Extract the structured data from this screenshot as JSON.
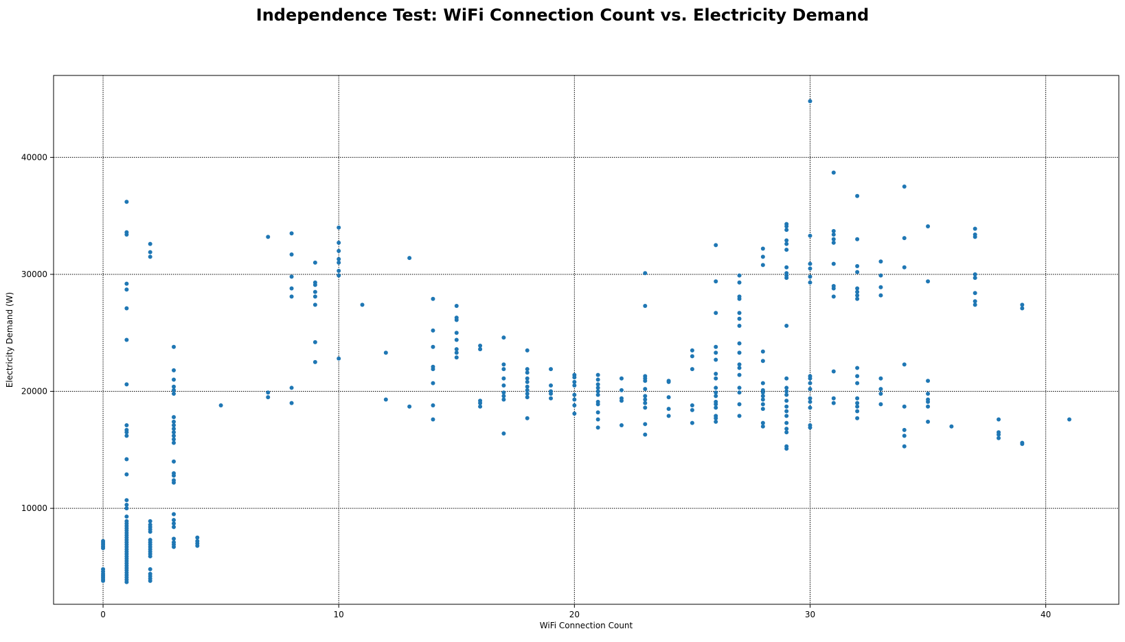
{
  "chart_data": {
    "type": "scatter",
    "title": "Independence Test: WiFi Connection Count vs. Electricity Demand",
    "xlabel": "WiFi Connection Count",
    "ylabel": "Electricity Demand (W)",
    "xlim": [
      -2.1,
      43.1
    ],
    "ylim": [
      1800,
      47000
    ],
    "xticks": [
      0,
      10,
      20,
      30,
      40
    ],
    "yticks": [
      10000,
      20000,
      30000,
      40000
    ],
    "grid": true,
    "grid_style": "dotted",
    "marker_color": "#1f77b4",
    "points": [
      [
        0,
        3800
      ],
      [
        0,
        3950
      ],
      [
        0,
        4100
      ],
      [
        0,
        4250
      ],
      [
        0,
        4400
      ],
      [
        0,
        4600
      ],
      [
        0,
        4800
      ],
      [
        0,
        6600
      ],
      [
        0,
        6750
      ],
      [
        0,
        6900
      ],
      [
        0,
        7050
      ],
      [
        0,
        7200
      ],
      [
        1,
        3700
      ],
      [
        1,
        3900
      ],
      [
        1,
        4100
      ],
      [
        1,
        4300
      ],
      [
        1,
        4500
      ],
      [
        1,
        4700
      ],
      [
        1,
        4900
      ],
      [
        1,
        5100
      ],
      [
        1,
        5300
      ],
      [
        1,
        5500
      ],
      [
        1,
        5700
      ],
      [
        1,
        5900
      ],
      [
        1,
        6100
      ],
      [
        1,
        6300
      ],
      [
        1,
        6500
      ],
      [
        1,
        6700
      ],
      [
        1,
        6900
      ],
      [
        1,
        7100
      ],
      [
        1,
        7300
      ],
      [
        1,
        7500
      ],
      [
        1,
        7700
      ],
      [
        1,
        7900
      ],
      [
        1,
        8100
      ],
      [
        1,
        8300
      ],
      [
        1,
        8500
      ],
      [
        1,
        8700
      ],
      [
        1,
        8900
      ],
      [
        1,
        9300
      ],
      [
        1,
        10000
      ],
      [
        1,
        10300
      ],
      [
        1,
        10700
      ],
      [
        1,
        12900
      ],
      [
        1,
        14200
      ],
      [
        1,
        16200
      ],
      [
        1,
        16500
      ],
      [
        1,
        16700
      ],
      [
        1,
        17100
      ],
      [
        1,
        20600
      ],
      [
        1,
        24400
      ],
      [
        1,
        27100
      ],
      [
        1,
        28700
      ],
      [
        1,
        29200
      ],
      [
        1,
        33400
      ],
      [
        1,
        33600
      ],
      [
        1,
        36200
      ],
      [
        2,
        3800
      ],
      [
        2,
        4000
      ],
      [
        2,
        4200
      ],
      [
        2,
        4400
      ],
      [
        2,
        4800
      ],
      [
        2,
        5900
      ],
      [
        2,
        6100
      ],
      [
        2,
        6300
      ],
      [
        2,
        6500
      ],
      [
        2,
        6700
      ],
      [
        2,
        6900
      ],
      [
        2,
        7100
      ],
      [
        2,
        7300
      ],
      [
        2,
        8000
      ],
      [
        2,
        8200
      ],
      [
        2,
        8400
      ],
      [
        2,
        8600
      ],
      [
        2,
        8900
      ],
      [
        2,
        31500
      ],
      [
        2,
        31900
      ],
      [
        2,
        32600
      ],
      [
        3,
        6700
      ],
      [
        3,
        6900
      ],
      [
        3,
        7100
      ],
      [
        3,
        7400
      ],
      [
        3,
        8400
      ],
      [
        3,
        8700
      ],
      [
        3,
        9000
      ],
      [
        3,
        9500
      ],
      [
        3,
        12200
      ],
      [
        3,
        12400
      ],
      [
        3,
        12800
      ],
      [
        3,
        13000
      ],
      [
        3,
        14000
      ],
      [
        3,
        15600
      ],
      [
        3,
        15900
      ],
      [
        3,
        16200
      ],
      [
        3,
        16500
      ],
      [
        3,
        16800
      ],
      [
        3,
        17100
      ],
      [
        3,
        17400
      ],
      [
        3,
        17800
      ],
      [
        3,
        19800
      ],
      [
        3,
        20100
      ],
      [
        3,
        20400
      ],
      [
        3,
        21000
      ],
      [
        3,
        21800
      ],
      [
        3,
        23800
      ],
      [
        4,
        6800
      ],
      [
        4,
        7000
      ],
      [
        4,
        7200
      ],
      [
        4,
        7500
      ],
      [
        5,
        18800
      ],
      [
        7,
        19500
      ],
      [
        7,
        19900
      ],
      [
        7,
        33200
      ],
      [
        8,
        19000
      ],
      [
        8,
        20300
      ],
      [
        8,
        28100
      ],
      [
        8,
        28800
      ],
      [
        8,
        29800
      ],
      [
        8,
        31700
      ],
      [
        8,
        33500
      ],
      [
        9,
        22500
      ],
      [
        9,
        24200
      ],
      [
        9,
        27400
      ],
      [
        9,
        28100
      ],
      [
        9,
        28500
      ],
      [
        9,
        29100
      ],
      [
        9,
        29300
      ],
      [
        9,
        31000
      ],
      [
        10,
        22800
      ],
      [
        10,
        29900
      ],
      [
        10,
        30300
      ],
      [
        10,
        31000
      ],
      [
        10,
        31300
      ],
      [
        10,
        32000
      ],
      [
        10,
        32700
      ],
      [
        10,
        34000
      ],
      [
        11,
        27400
      ],
      [
        12,
        19300
      ],
      [
        12,
        23300
      ],
      [
        13,
        18700
      ],
      [
        13,
        31400
      ],
      [
        14,
        17600
      ],
      [
        14,
        18800
      ],
      [
        14,
        20700
      ],
      [
        14,
        21900
      ],
      [
        14,
        22100
      ],
      [
        14,
        23800
      ],
      [
        14,
        25200
      ],
      [
        14,
        27900
      ],
      [
        15,
        22900
      ],
      [
        15,
        23300
      ],
      [
        15,
        23600
      ],
      [
        15,
        24400
      ],
      [
        15,
        25000
      ],
      [
        15,
        26100
      ],
      [
        15,
        26300
      ],
      [
        15,
        27300
      ],
      [
        16,
        18700
      ],
      [
        16,
        19000
      ],
      [
        16,
        19200
      ],
      [
        16,
        23600
      ],
      [
        16,
        23900
      ],
      [
        17,
        16400
      ],
      [
        17,
        19300
      ],
      [
        17,
        19600
      ],
      [
        17,
        19900
      ],
      [
        17,
        20500
      ],
      [
        17,
        21100
      ],
      [
        17,
        21900
      ],
      [
        17,
        22300
      ],
      [
        17,
        24600
      ],
      [
        18,
        17700
      ],
      [
        18,
        19500
      ],
      [
        18,
        19800
      ],
      [
        18,
        20100
      ],
      [
        18,
        20400
      ],
      [
        18,
        20800
      ],
      [
        18,
        21100
      ],
      [
        18,
        21600
      ],
      [
        18,
        21900
      ],
      [
        18,
        23500
      ],
      [
        19,
        19400
      ],
      [
        19,
        19800
      ],
      [
        19,
        20000
      ],
      [
        19,
        20500
      ],
      [
        19,
        21900
      ],
      [
        20,
        18100
      ],
      [
        20,
        18800
      ],
      [
        20,
        19300
      ],
      [
        20,
        19700
      ],
      [
        20,
        20500
      ],
      [
        20,
        20800
      ],
      [
        20,
        21200
      ],
      [
        20,
        21400
      ],
      [
        21,
        16900
      ],
      [
        21,
        17600
      ],
      [
        21,
        18200
      ],
      [
        21,
        18900
      ],
      [
        21,
        19100
      ],
      [
        21,
        19700
      ],
      [
        21,
        20000
      ],
      [
        21,
        20300
      ],
      [
        21,
        20600
      ],
      [
        21,
        21000
      ],
      [
        21,
        21400
      ],
      [
        22,
        17100
      ],
      [
        22,
        19200
      ],
      [
        22,
        19400
      ],
      [
        22,
        20100
      ],
      [
        22,
        21100
      ],
      [
        23,
        16300
      ],
      [
        23,
        17200
      ],
      [
        23,
        18600
      ],
      [
        23,
        19000
      ],
      [
        23,
        19300
      ],
      [
        23,
        19600
      ],
      [
        23,
        20200
      ],
      [
        23,
        20900
      ],
      [
        23,
        21100
      ],
      [
        23,
        21300
      ],
      [
        23,
        27300
      ],
      [
        23,
        30100
      ],
      [
        24,
        17900
      ],
      [
        24,
        18500
      ],
      [
        24,
        19500
      ],
      [
        24,
        20800
      ],
      [
        24,
        20900
      ],
      [
        25,
        17300
      ],
      [
        25,
        18400
      ],
      [
        25,
        18800
      ],
      [
        25,
        21900
      ],
      [
        25,
        23000
      ],
      [
        25,
        23500
      ],
      [
        26,
        17400
      ],
      [
        26,
        17700
      ],
      [
        26,
        17900
      ],
      [
        26,
        18600
      ],
      [
        26,
        18900
      ],
      [
        26,
        19100
      ],
      [
        26,
        19600
      ],
      [
        26,
        19900
      ],
      [
        26,
        20300
      ],
      [
        26,
        21100
      ],
      [
        26,
        21500
      ],
      [
        26,
        22700
      ],
      [
        26,
        23300
      ],
      [
        26,
        23800
      ],
      [
        26,
        26700
      ],
      [
        26,
        29400
      ],
      [
        26,
        32500
      ],
      [
        27,
        17900
      ],
      [
        27,
        18900
      ],
      [
        27,
        19900
      ],
      [
        27,
        20300
      ],
      [
        27,
        21400
      ],
      [
        27,
        22000
      ],
      [
        27,
        22300
      ],
      [
        27,
        23300
      ],
      [
        27,
        24100
      ],
      [
        27,
        25600
      ],
      [
        27,
        26200
      ],
      [
        27,
        26700
      ],
      [
        27,
        27900
      ],
      [
        27,
        28100
      ],
      [
        27,
        29300
      ],
      [
        27,
        29900
      ],
      [
        28,
        17000
      ],
      [
        28,
        17300
      ],
      [
        28,
        18500
      ],
      [
        28,
        18900
      ],
      [
        28,
        19300
      ],
      [
        28,
        19600
      ],
      [
        28,
        19900
      ],
      [
        28,
        20100
      ],
      [
        28,
        20700
      ],
      [
        28,
        22600
      ],
      [
        28,
        23400
      ],
      [
        28,
        30800
      ],
      [
        28,
        31500
      ],
      [
        28,
        32200
      ],
      [
        29,
        15100
      ],
      [
        29,
        15300
      ],
      [
        29,
        16500
      ],
      [
        29,
        16800
      ],
      [
        29,
        17300
      ],
      [
        29,
        17900
      ],
      [
        29,
        18300
      ],
      [
        29,
        18700
      ],
      [
        29,
        19200
      ],
      [
        29,
        19700
      ],
      [
        29,
        20000
      ],
      [
        29,
        20300
      ],
      [
        29,
        21100
      ],
      [
        29,
        25600
      ],
      [
        29,
        29700
      ],
      [
        29,
        29900
      ],
      [
        29,
        30100
      ],
      [
        29,
        30600
      ],
      [
        29,
        32100
      ],
      [
        29,
        32600
      ],
      [
        29,
        32900
      ],
      [
        29,
        33800
      ],
      [
        29,
        34100
      ],
      [
        29,
        34300
      ],
      [
        30,
        16900
      ],
      [
        30,
        17100
      ],
      [
        30,
        18600
      ],
      [
        30,
        19100
      ],
      [
        30,
        19400
      ],
      [
        30,
        20200
      ],
      [
        30,
        20700
      ],
      [
        30,
        21100
      ],
      [
        30,
        21300
      ],
      [
        30,
        29300
      ],
      [
        30,
        29800
      ],
      [
        30,
        30500
      ],
      [
        30,
        30900
      ],
      [
        30,
        33300
      ],
      [
        30,
        44800
      ],
      [
        31,
        19000
      ],
      [
        31,
        19400
      ],
      [
        31,
        21700
      ],
      [
        31,
        28100
      ],
      [
        31,
        28800
      ],
      [
        31,
        29000
      ],
      [
        31,
        30900
      ],
      [
        31,
        32700
      ],
      [
        31,
        33000
      ],
      [
        31,
        33400
      ],
      [
        31,
        33700
      ],
      [
        31,
        38700
      ],
      [
        32,
        17700
      ],
      [
        32,
        18300
      ],
      [
        32,
        18700
      ],
      [
        32,
        19000
      ],
      [
        32,
        19400
      ],
      [
        32,
        20700
      ],
      [
        32,
        21300
      ],
      [
        32,
        22000
      ],
      [
        32,
        27900
      ],
      [
        32,
        28200
      ],
      [
        32,
        28500
      ],
      [
        32,
        28800
      ],
      [
        32,
        30200
      ],
      [
        32,
        30700
      ],
      [
        32,
        33000
      ],
      [
        32,
        36700
      ],
      [
        33,
        18900
      ],
      [
        33,
        19800
      ],
      [
        33,
        20200
      ],
      [
        33,
        21100
      ],
      [
        33,
        28200
      ],
      [
        33,
        28900
      ],
      [
        33,
        29900
      ],
      [
        33,
        31100
      ],
      [
        34,
        15300
      ],
      [
        34,
        16200
      ],
      [
        34,
        16700
      ],
      [
        34,
        18700
      ],
      [
        34,
        22300
      ],
      [
        34,
        30600
      ],
      [
        34,
        33100
      ],
      [
        34,
        37500
      ],
      [
        35,
        17400
      ],
      [
        35,
        18700
      ],
      [
        35,
        19100
      ],
      [
        35,
        19300
      ],
      [
        35,
        19800
      ],
      [
        35,
        20900
      ],
      [
        35,
        29400
      ],
      [
        35,
        34100
      ],
      [
        36,
        17000
      ],
      [
        37,
        27400
      ],
      [
        37,
        27700
      ],
      [
        37,
        28400
      ],
      [
        37,
        29700
      ],
      [
        37,
        30000
      ],
      [
        37,
        33200
      ],
      [
        37,
        33400
      ],
      [
        37,
        33900
      ],
      [
        38,
        16000
      ],
      [
        38,
        16300
      ],
      [
        38,
        16500
      ],
      [
        38,
        17600
      ],
      [
        39,
        15500
      ],
      [
        39,
        15600
      ],
      [
        39,
        27100
      ],
      [
        39,
        27400
      ],
      [
        41,
        17600
      ]
    ]
  }
}
